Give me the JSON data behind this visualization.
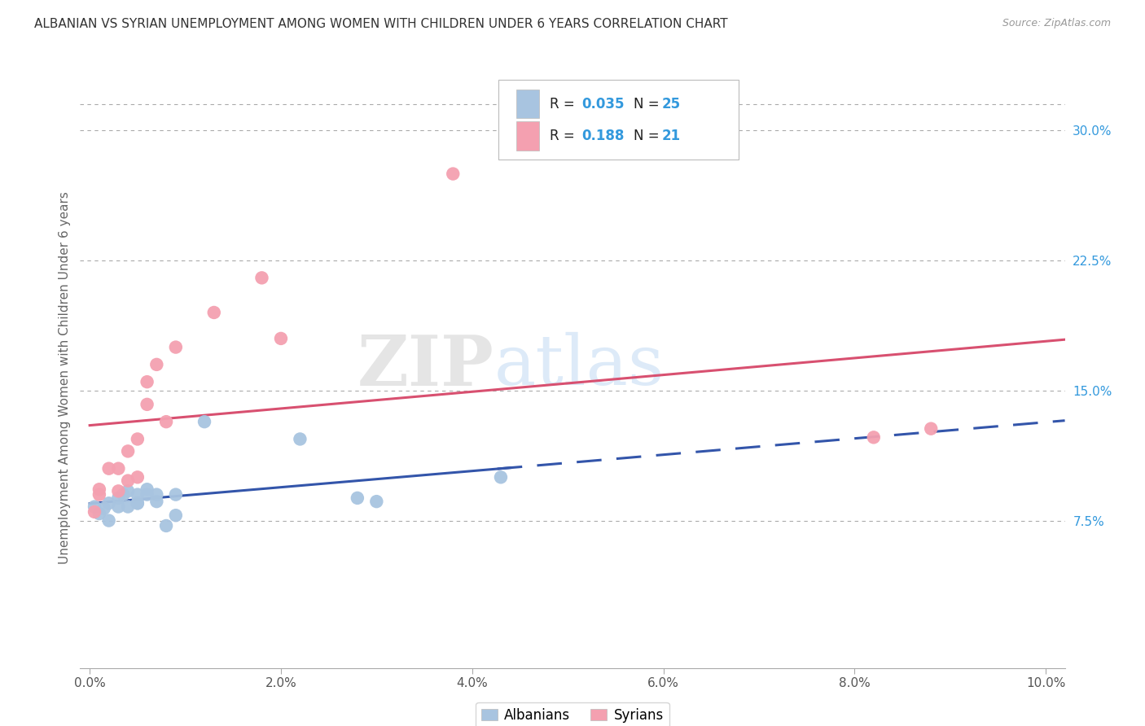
{
  "title": "ALBANIAN VS SYRIAN UNEMPLOYMENT AMONG WOMEN WITH CHILDREN UNDER 6 YEARS CORRELATION CHART",
  "source": "Source: ZipAtlas.com",
  "ylabel": "Unemployment Among Women with Children Under 6 years",
  "xlabel_ticks": [
    "0.0%",
    "2.0%",
    "4.0%",
    "6.0%",
    "8.0%",
    "10.0%"
  ],
  "xlabel_vals": [
    0.0,
    0.02,
    0.04,
    0.06,
    0.08,
    0.1
  ],
  "ylabel_ticks_right": [
    "30.0%",
    "22.5%",
    "15.0%",
    "7.5%"
  ],
  "ylabel_vals_right": [
    0.3,
    0.225,
    0.15,
    0.075
  ],
  "ylim": [
    -0.01,
    0.325
  ],
  "xlim": [
    -0.001,
    0.102
  ],
  "albanians_x": [
    0.0005,
    0.001,
    0.0015,
    0.002,
    0.002,
    0.003,
    0.003,
    0.0035,
    0.004,
    0.004,
    0.005,
    0.005,
    0.005,
    0.006,
    0.006,
    0.007,
    0.007,
    0.008,
    0.009,
    0.009,
    0.012,
    0.022,
    0.028,
    0.03,
    0.043
  ],
  "albanians_y": [
    0.083,
    0.079,
    0.082,
    0.075,
    0.085,
    0.083,
    0.088,
    0.09,
    0.083,
    0.092,
    0.085,
    0.09,
    0.085,
    0.09,
    0.093,
    0.086,
    0.09,
    0.072,
    0.09,
    0.078,
    0.132,
    0.122,
    0.088,
    0.086,
    0.1
  ],
  "syrians_x": [
    0.0005,
    0.001,
    0.001,
    0.002,
    0.003,
    0.003,
    0.004,
    0.004,
    0.005,
    0.005,
    0.006,
    0.006,
    0.007,
    0.008,
    0.009,
    0.013,
    0.018,
    0.02,
    0.038,
    0.082,
    0.088
  ],
  "syrians_y": [
    0.08,
    0.09,
    0.093,
    0.105,
    0.092,
    0.105,
    0.098,
    0.115,
    0.1,
    0.122,
    0.142,
    0.155,
    0.165,
    0.132,
    0.175,
    0.195,
    0.215,
    0.18,
    0.275,
    0.123,
    0.128
  ],
  "albanian_color": "#a8c4e0",
  "syrian_color": "#f4a0b0",
  "albanian_line_color": "#3355aa",
  "syrian_line_color": "#d85070",
  "albanian_R": 0.035,
  "albanian_N": 25,
  "syrian_R": 0.188,
  "syrian_N": 21,
  "rval_color": "#3399dd",
  "watermark_zip": "ZIP",
  "watermark_atlas": "atlas",
  "background_color": "#ffffff",
  "grid_color": "#cccccc",
  "dotted_color": "#aaaaaa"
}
